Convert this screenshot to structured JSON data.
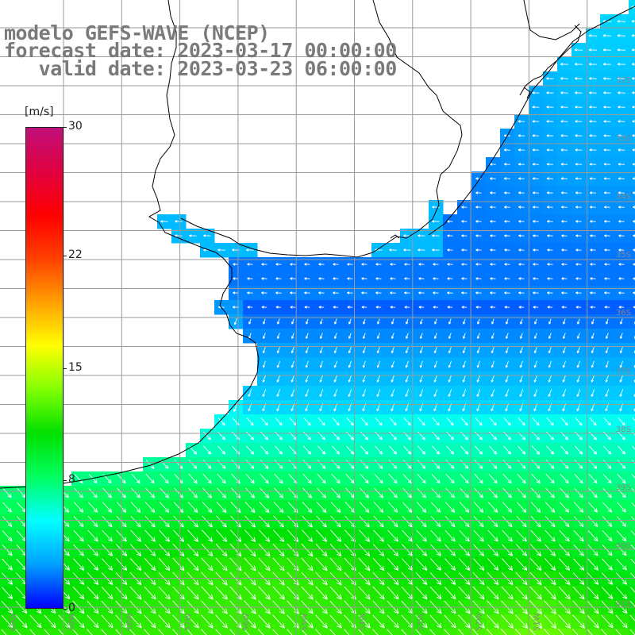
{
  "title": {
    "line1": "modelo GEFS-WAVE (NCEP)",
    "line2": "forecast date: 2023-03-17 00:00:00",
    "line3": "   valid date: 2023-03-23 06:00:00"
  },
  "colorbar": {
    "unit": "[m/s]",
    "min": 0,
    "max": 30,
    "ticks": [
      {
        "label": "30",
        "value": 30
      },
      {
        "label": "22",
        "value": 22
      },
      {
        "label": "15",
        "value": 15
      },
      {
        "label": "8",
        "value": 8
      },
      {
        "label": "0",
        "value": 0
      }
    ],
    "colors": [
      "#0000ff",
      "#00a0ff",
      "#00ffff",
      "#00ff60",
      "#00e000",
      "#80ff00",
      "#ffff00",
      "#ffa000",
      "#ff4000",
      "#ff0000",
      "#e00040",
      "#c0107a"
    ]
  },
  "map": {
    "lat_labels": [
      "32S",
      "33S",
      "34S",
      "35S",
      "36S",
      "37S",
      "38S",
      "39S",
      "40S",
      "41S"
    ],
    "lon_labels": [
      "60W",
      "59W",
      "58W",
      "57W",
      "56W",
      "55W",
      "54W",
      "53W",
      "52W",
      "51W"
    ],
    "colors": {
      "land": "#ffffff",
      "grid": "#9a9a9a",
      "coast": "#000000",
      "arrow": "#ffffff",
      "label": "#8a8a8a"
    }
  }
}
